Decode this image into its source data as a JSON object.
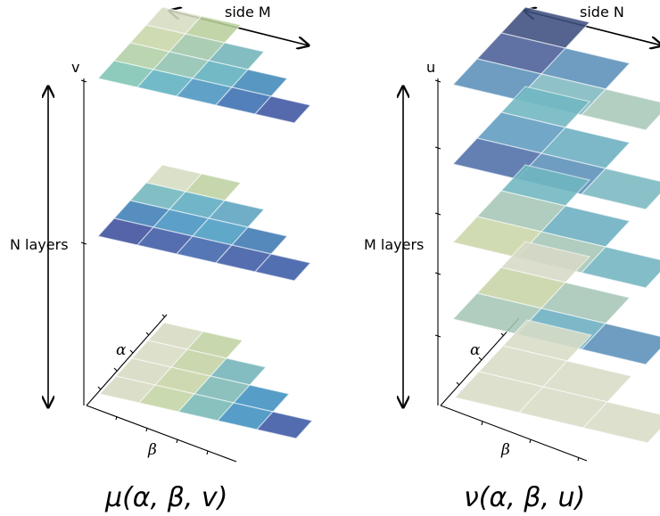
{
  "left_panel": {
    "side_label": "side M",
    "layers_label": "N layers",
    "vertical_axis_label": "v",
    "alpha_label": "α",
    "beta_label": "β",
    "caption": "μ(α, β, v)",
    "layers": [
      {
        "rows": [
          [
            "#7fc4b4",
            "#5fb0bf",
            "#4a94c0",
            "#3a6eb0",
            "#3c55a0"
          ],
          [
            "#b0cfa5",
            "#8fc2b2",
            "#5eafbd",
            "#4189b8"
          ],
          [
            "#c8d6a8",
            "#9fc6a8",
            "#72b4b8"
          ],
          [
            "#d6dcc2",
            "#b9cf9c"
          ]
        ]
      },
      {
        "rows": [
          [
            "#3c4f9c",
            "#3d5aa4",
            "#3f64ac",
            "#3d5aa4",
            "#3a5ba6"
          ],
          [
            "#3f7fb6",
            "#4592c0",
            "#4a9cc3",
            "#3e77b2"
          ],
          [
            "#71b6bd",
            "#5dabc0",
            "#5ca3c0"
          ],
          [
            "#d6dcc2",
            "#bed2a2"
          ]
        ]
      },
      {
        "rows": [
          [
            "#d6dac0",
            "#c3d4a4",
            "#77b8b5",
            "#3f90bf",
            "#3a58a4"
          ],
          [
            "#d6dac0",
            "#c8d4a6",
            "#7cb8b4",
            "#3f8fc0"
          ],
          [
            "#d8dcc4",
            "#c3d2a4",
            "#72b4b8"
          ],
          [
            "#d6dac0",
            "#c0d2a2"
          ]
        ]
      }
    ]
  },
  "right_panel": {
    "side_label": "side N",
    "layers_label": "M layers",
    "vertical_axis_label": "u",
    "alpha_label": "α",
    "beta_label": "β",
    "caption": "ν(α, β, u)",
    "layers": [
      {
        "rows": [
          [
            "#5a8fb8",
            "#7fb8c0",
            "#a9c8b8"
          ],
          [
            "#4a5e96",
            "#5a8fb8"
          ],
          [
            "#3c4f7e"
          ]
        ]
      },
      {
        "rows": [
          [
            "#4f6ea8",
            "#5a8fb8",
            "#7ab8c0"
          ],
          [
            "#5e9bbf",
            "#6aaec0"
          ],
          [
            "#6fb6c0"
          ]
        ]
      },
      {
        "rows": [
          [
            "#cbd6a8",
            "#a5c6b6",
            "#72b4c0"
          ],
          [
            "#a5c6b6",
            "#6aaec0"
          ],
          [
            "#6fb6c0"
          ]
        ]
      },
      {
        "rows": [
          [
            "#a5c6b6",
            "#6aaec0",
            "#5a8fb8"
          ],
          [
            "#c8d4a6",
            "#a5c6b6"
          ],
          [
            "#d6dac6"
          ]
        ]
      },
      {
        "rows": [
          [
            "#d8dcc6",
            "#d8dcc6",
            "#d8dcc6"
          ],
          [
            "#d8dcc6",
            "#d8dcc6"
          ],
          [
            "#d8dcc6"
          ]
        ]
      }
    ]
  }
}
